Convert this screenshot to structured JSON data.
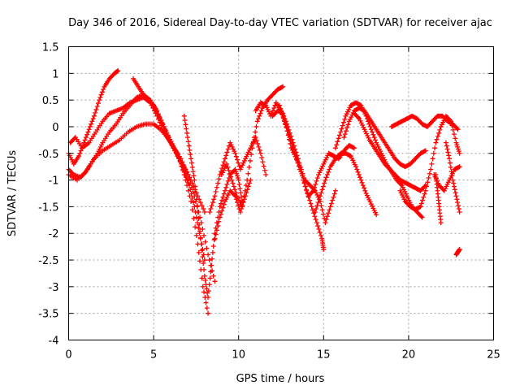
{
  "chart_data": {
    "type": "scatter",
    "title": "Day 346 of 2016, Sidereal Day-to-day VTEC variation (SDTVAR) for receiver ajac",
    "xlabel": "GPS time / hours",
    "ylabel": "SDTVAR / TECUs",
    "xlim": [
      0,
      25
    ],
    "ylim": [
      -4,
      1.5
    ],
    "xticks": [
      0,
      5,
      10,
      15,
      20,
      25
    ],
    "xtick_labels": [
      "0",
      "5",
      "10",
      "15",
      "20",
      "25"
    ],
    "yticks": [
      -4,
      -3.5,
      -3,
      -2.5,
      -2,
      -1.5,
      -1,
      -0.5,
      0,
      0.5,
      1,
      1.5
    ],
    "ytick_labels": [
      "-4",
      "-3.5",
      "-3",
      "-2.5",
      "-2",
      "-1.5",
      "-1",
      "-0.5",
      "0",
      "0.5",
      "1",
      "1.5"
    ],
    "grid": true,
    "marker": "plus",
    "color": "#ff0000",
    "series": [
      {
        "x": [
          0.0,
          0.3,
          0.6,
          0.9,
          1.2,
          1.5,
          1.8,
          2.1,
          2.4,
          2.7,
          2.9
        ],
        "values": [
          -0.5,
          -0.7,
          -0.55,
          -0.3,
          -0.05,
          0.2,
          0.5,
          0.75,
          0.9,
          1.0,
          1.05
        ]
      },
      {
        "x": [
          0.1,
          0.4,
          0.8,
          1.2,
          1.6,
          2.0,
          2.4,
          2.8,
          3.2,
          3.6,
          4.0,
          4.4,
          4.8,
          5.2,
          5.6,
          6.0,
          6.4,
          6.8,
          7.2,
          7.6,
          8.0
        ],
        "values": [
          -0.3,
          -0.2,
          -0.4,
          -0.3,
          -0.1,
          0.1,
          0.25,
          0.3,
          0.35,
          0.45,
          0.5,
          0.55,
          0.45,
          0.2,
          -0.1,
          -0.3,
          -0.55,
          -0.75,
          -1.0,
          -1.3,
          -1.6
        ]
      },
      {
        "x": [
          0.0,
          0.3,
          0.7,
          1.0,
          1.3,
          1.7,
          2.0,
          2.4,
          2.8,
          3.2,
          3.6,
          4.0,
          4.4,
          4.8,
          5.2,
          5.6,
          6.0,
          6.4,
          6.8,
          7.2,
          7.6,
          7.9,
          8.2
        ],
        "values": [
          -0.8,
          -0.9,
          -0.95,
          -0.85,
          -0.7,
          -0.5,
          -0.3,
          -0.1,
          0.05,
          0.25,
          0.4,
          0.55,
          0.6,
          0.5,
          0.3,
          0.0,
          -0.3,
          -0.5,
          -0.9,
          -1.4,
          -2.2,
          -3.0,
          -3.5
        ]
      },
      {
        "x": [
          0.0,
          0.5,
          1.0,
          1.5,
          2.0,
          2.5,
          3.0,
          3.5,
          4.0,
          4.5,
          5.0,
          5.4,
          5.8,
          6.2,
          6.6,
          7.0,
          7.4,
          7.8,
          8.2,
          8.6
        ],
        "values": [
          -0.9,
          -1.0,
          -0.85,
          -0.6,
          -0.45,
          -0.35,
          -0.25,
          -0.1,
          0.0,
          0.05,
          0.05,
          -0.05,
          -0.2,
          -0.4,
          -0.6,
          -0.9,
          -1.3,
          -1.8,
          -2.4,
          -2.9
        ]
      },
      {
        "x": [
          3.8,
          4.1,
          4.4,
          4.7,
          5.0,
          5.3,
          5.6,
          5.9,
          6.2,
          6.5,
          6.8,
          7.1,
          7.4,
          7.7,
          8.0
        ],
        "values": [
          0.9,
          0.75,
          0.6,
          0.5,
          0.4,
          0.2,
          0.0,
          -0.2,
          -0.4,
          -0.6,
          -0.85,
          -1.1,
          -1.5,
          -2.0,
          -2.5
        ]
      },
      {
        "x": [
          6.8,
          7.0,
          7.2,
          7.4,
          7.6,
          7.8,
          8.0,
          8.2,
          8.4,
          8.6,
          8.9,
          9.2,
          9.5,
          9.8,
          10.0,
          10.2
        ],
        "values": [
          0.2,
          -0.2,
          -0.6,
          -1.0,
          -1.6,
          -2.2,
          -2.8,
          -3.2,
          -2.6,
          -2.0,
          -1.5,
          -1.2,
          -0.9,
          -0.8,
          -1.0,
          -1.4
        ]
      },
      {
        "x": [
          8.3,
          8.6,
          8.9,
          9.2,
          9.5,
          9.8,
          10.1,
          10.4,
          10.7,
          11.0,
          11.3,
          11.6
        ],
        "values": [
          -1.6,
          -1.3,
          -0.9,
          -0.6,
          -0.3,
          -0.5,
          -0.8,
          -0.6,
          -0.4,
          -0.2,
          -0.5,
          -0.9
        ]
      },
      {
        "x": [
          9.0,
          9.3,
          9.6,
          9.9,
          10.2,
          10.5,
          10.8,
          11.1,
          11.4,
          11.7,
          12.0,
          12.3,
          12.6
        ],
        "values": [
          -0.9,
          -0.7,
          -1.0,
          -1.3,
          -1.5,
          -1.0,
          -0.4,
          0.1,
          0.35,
          0.5,
          0.6,
          0.7,
          0.75
        ]
      },
      {
        "x": [
          8.6,
          8.9,
          9.2,
          9.5,
          9.8,
          10.1,
          10.4,
          10.7
        ],
        "values": [
          -2.1,
          -1.7,
          -1.4,
          -1.2,
          -1.3,
          -1.6,
          -1.3,
          -1.0
        ]
      },
      {
        "x": [
          11.0,
          11.3,
          11.6,
          11.9,
          12.2,
          12.5,
          12.8,
          13.1,
          13.4,
          13.7,
          14.0,
          14.3,
          14.6,
          14.9,
          15.0
        ],
        "values": [
          0.3,
          0.45,
          0.4,
          0.2,
          0.45,
          0.3,
          0.0,
          -0.4,
          -0.6,
          -0.8,
          -1.2,
          -1.5,
          -1.8,
          -2.1,
          -2.3
        ]
      },
      {
        "x": [
          12.0,
          12.3,
          12.6,
          12.9,
          13.2,
          13.5,
          13.8,
          14.1,
          14.4,
          14.7,
          15.0,
          15.3,
          15.6,
          15.9,
          16.2,
          16.5,
          16.8
        ],
        "values": [
          0.2,
          0.3,
          0.25,
          0.0,
          -0.3,
          -0.6,
          -1.0,
          -1.3,
          -1.2,
          -0.9,
          -0.7,
          -0.5,
          -0.55,
          -0.6,
          -0.45,
          -0.35,
          -0.4
        ]
      },
      {
        "x": [
          12.4,
          12.7,
          13.0,
          13.3,
          13.6,
          13.9,
          14.2,
          14.5,
          14.8,
          15.1,
          15.4,
          15.7
        ],
        "values": [
          0.4,
          0.1,
          -0.2,
          -0.5,
          -0.8,
          -1.0,
          -1.1,
          -1.2,
          -1.4,
          -1.8,
          -1.5,
          -1.2
        ]
      },
      {
        "x": [
          14.5,
          14.8,
          15.1,
          15.4,
          15.7,
          16.0,
          16.3,
          16.6,
          16.9,
          17.2,
          17.5,
          17.8,
          18.1
        ],
        "values": [
          -1.6,
          -1.3,
          -1.0,
          -0.75,
          -0.6,
          -0.5,
          -0.5,
          -0.55,
          -0.75,
          -1.0,
          -1.25,
          -1.45,
          -1.65
        ]
      },
      {
        "x": [
          15.7,
          16.0,
          16.3,
          16.6,
          16.9,
          17.2,
          17.5,
          17.8,
          18.1,
          18.4,
          18.7,
          19.0,
          19.3,
          19.6,
          19.9,
          20.2,
          20.5,
          20.8
        ],
        "values": [
          -0.4,
          -0.1,
          0.2,
          0.4,
          0.45,
          0.4,
          0.2,
          -0.05,
          -0.3,
          -0.5,
          -0.7,
          -0.85,
          -1.0,
          -1.1,
          -1.3,
          -1.5,
          -1.6,
          -1.7
        ]
      },
      {
        "x": [
          16.2,
          16.5,
          16.8,
          17.1,
          17.4,
          17.7,
          18.0,
          18.3,
          18.6,
          18.9,
          19.2,
          19.5,
          19.8,
          20.1,
          20.4,
          20.7,
          21.0
        ],
        "values": [
          -0.2,
          0.1,
          0.3,
          0.35,
          0.3,
          0.15,
          0.0,
          -0.15,
          -0.3,
          -0.45,
          -0.6,
          -0.7,
          -0.75,
          -0.7,
          -0.6,
          -0.5,
          -0.45
        ]
      },
      {
        "x": [
          16.8,
          17.1,
          17.4,
          17.7,
          18.0,
          18.3,
          18.6,
          18.9,
          19.2,
          19.5,
          19.8,
          20.1,
          20.4,
          20.7,
          21.0
        ],
        "values": [
          0.25,
          0.15,
          -0.05,
          -0.25,
          -0.4,
          -0.55,
          -0.7,
          -0.8,
          -0.9,
          -1.0,
          -1.05,
          -1.1,
          -1.15,
          -1.2,
          -1.1
        ]
      },
      {
        "x": [
          19.0,
          19.3,
          19.6,
          19.9,
          20.2,
          20.5,
          20.8,
          21.1,
          21.4,
          21.7,
          22.0,
          22.3,
          22.6,
          22.9
        ],
        "values": [
          0.0,
          0.05,
          0.1,
          0.15,
          0.2,
          0.15,
          0.05,
          0.0,
          0.1,
          0.2,
          0.2,
          0.1,
          0.05,
          -0.05
        ]
      },
      {
        "x": [
          19.5,
          19.8,
          20.1,
          20.4,
          20.7,
          21.0,
          21.3,
          21.6,
          21.9,
          22.2,
          22.5,
          22.8,
          23.0
        ],
        "values": [
          -1.2,
          -1.4,
          -1.5,
          -1.55,
          -1.5,
          -1.2,
          -0.8,
          -0.3,
          0.0,
          0.2,
          0.1,
          -0.3,
          -0.5
        ]
      },
      {
        "x": [
          21.5,
          21.8,
          22.1,
          22.4,
          22.7,
          23.0
        ],
        "values": [
          -0.9,
          -1.1,
          -1.2,
          -1.0,
          -0.8,
          -0.75
        ]
      },
      {
        "x": [
          22.2,
          22.4,
          22.6,
          22.8,
          23.0
        ],
        "values": [
          -0.3,
          -0.6,
          -1.0,
          -1.3,
          -1.6
        ]
      },
      {
        "x": [
          21.6,
          21.7,
          21.8,
          21.9
        ],
        "values": [
          -0.9,
          -1.2,
          -1.5,
          -1.8
        ]
      },
      {
        "x": [
          22.8,
          22.9,
          23.0
        ],
        "values": [
          -2.4,
          -2.35,
          -2.3
        ]
      }
    ]
  }
}
